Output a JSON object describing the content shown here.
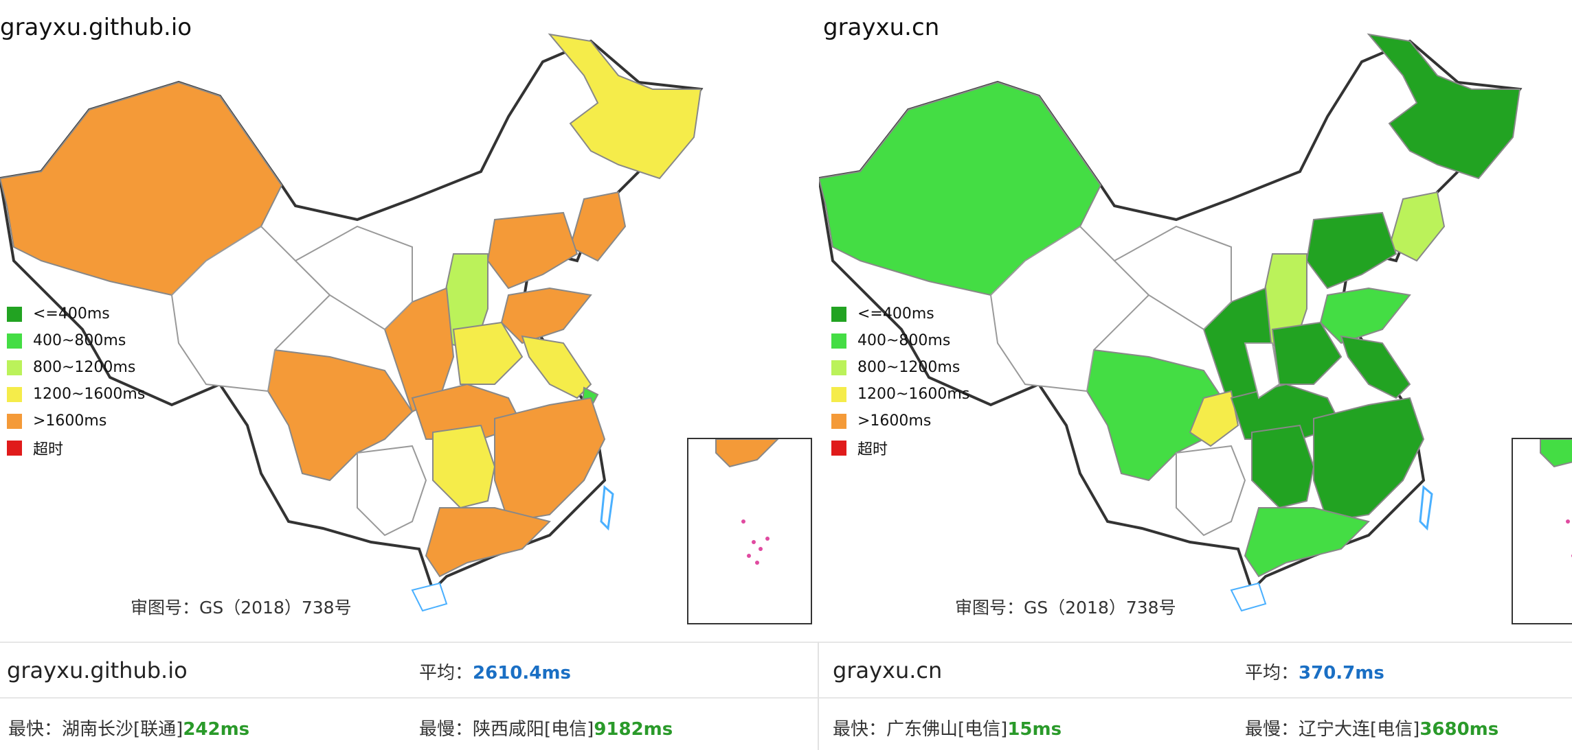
{
  "left": {
    "title": "grayxu.github.io",
    "legend": [
      {
        "label": "<=400ms",
        "color": "#22a322"
      },
      {
        "label": "400~800ms",
        "color": "#44dd44"
      },
      {
        "label": "800~1200ms",
        "color": "#bbf25a"
      },
      {
        "label": "1200~1600ms",
        "color": "#f5ec4a"
      },
      {
        "label": ">1600ms",
        "color": "#f49a38"
      },
      {
        "label": "超时",
        "color": "#e01b1b"
      }
    ],
    "approval": "审图号：GS（2018）738号",
    "stats": {
      "domain": "grayxu.github.io",
      "avg_label": "平均：",
      "avg_value": "2610.4ms",
      "fastest_label": "最快：",
      "fastest_location": "湖南长沙[联通]",
      "fastest_value": "242ms",
      "slowest_label": "最慢：",
      "slowest_location": "陕西咸阳[电信]",
      "slowest_value": "9182ms"
    }
  },
  "right": {
    "title": "grayxu.cn",
    "legend": [
      {
        "label": "<=400ms",
        "color": "#22a322"
      },
      {
        "label": "400~800ms",
        "color": "#44dd44"
      },
      {
        "label": "800~1200ms",
        "color": "#bbf25a"
      },
      {
        "label": "1200~1600ms",
        "color": "#f5ec4a"
      },
      {
        "label": ">1600ms",
        "color": "#f49a38"
      },
      {
        "label": "超时",
        "color": "#e01b1b"
      }
    ],
    "approval": "审图号：GS（2018）738号",
    "stats": {
      "domain": "grayxu.cn",
      "avg_label": "平均：",
      "avg_value": "370.7ms",
      "fastest_label": "最快：",
      "fastest_location": "广东佛山[电信]",
      "fastest_value": "15ms",
      "slowest_label": "最慢：",
      "slowest_location": "辽宁大连[电信]",
      "slowest_value": "3680ms"
    }
  }
}
